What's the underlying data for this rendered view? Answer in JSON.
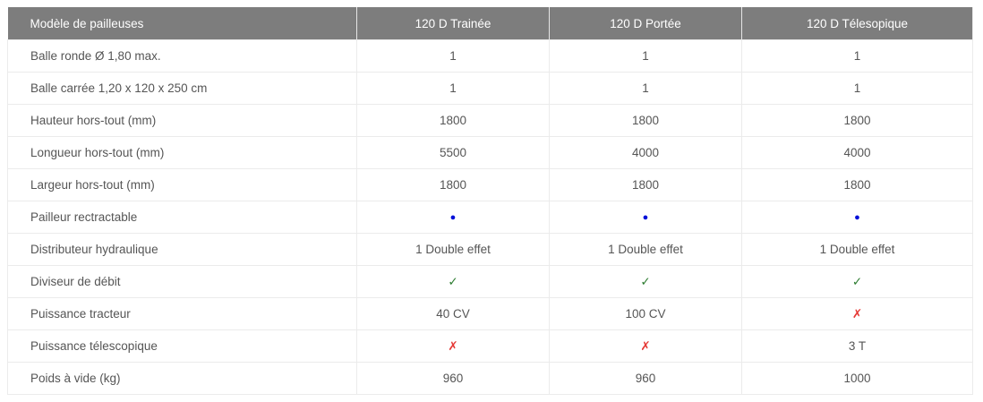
{
  "table": {
    "headers": [
      "Modèle de pailleuses",
      "120 D Trainée",
      "120 D Portée",
      "120 D Télesopique"
    ],
    "rows": [
      [
        "Balle ronde Ø 1,80 max.",
        "1",
        "1",
        "1"
      ],
      [
        "Balle carrée 1,20 x 120 x 250 cm",
        "1",
        "1",
        "1"
      ],
      [
        "Hauteur hors-tout (mm)",
        "1800",
        "1800",
        "1800"
      ],
      [
        "Longueur hors-tout (mm)",
        "5500",
        "4000",
        "4000"
      ],
      [
        "Largeur hors-tout (mm)",
        "1800",
        "1800",
        "1800"
      ],
      [
        "Pailleur rectractable",
        "●",
        "●",
        "●"
      ],
      [
        "Distributeur hydraulique",
        "1 Double effet",
        "1 Double effet",
        "1 Double effet"
      ],
      [
        "Diviseur de débit",
        "✓",
        "✓",
        "✓"
      ],
      [
        "Puissance tracteur",
        "40 CV",
        "100 CV",
        "✗"
      ],
      [
        "Puissance télescopique",
        "✗",
        "✗",
        "3 T"
      ],
      [
        "Poids à vide (kg)",
        "960",
        "960",
        "1000"
      ]
    ]
  },
  "colors": {
    "header_bg": "#7d7d7d",
    "dot": "#0010d8",
    "check": "#2e7d32",
    "cross": "#e53935"
  }
}
